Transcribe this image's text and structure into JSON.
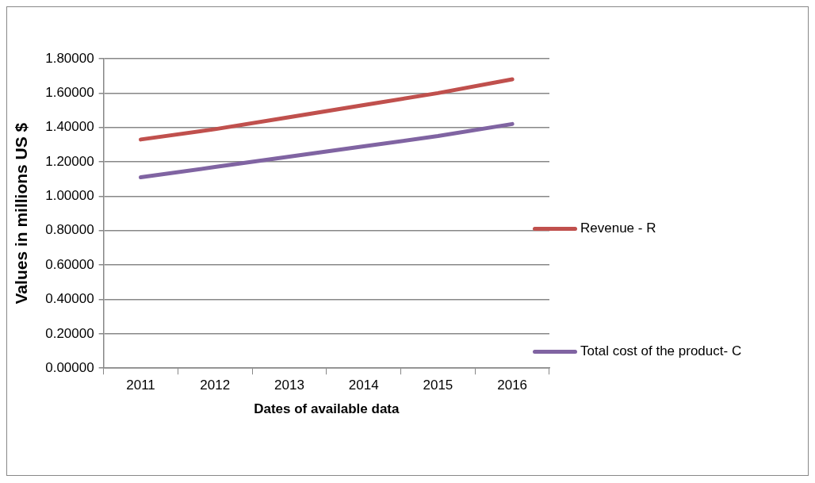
{
  "chart_data": {
    "type": "line",
    "xlabel": "Dates of available data",
    "ylabel": "Values in millions US $",
    "categories": [
      "2011",
      "2012",
      "2013",
      "2014",
      "2015",
      "2016"
    ],
    "series": [
      {
        "name": "Revenue  - R",
        "color": "#c0504d",
        "values": [
          1.33,
          1.39,
          1.46,
          1.53,
          1.6,
          1.68
        ]
      },
      {
        "name": "Total cost of the product- C",
        "color": "#8064a2",
        "values": [
          1.11,
          1.17,
          1.23,
          1.29,
          1.35,
          1.42
        ]
      }
    ],
    "ylim": [
      0,
      1.8
    ],
    "yticks": [
      {
        "value": 0,
        "label": "0.00000"
      },
      {
        "value": 0.2,
        "label": "0.20000"
      },
      {
        "value": 0.4,
        "label": "0.40000"
      },
      {
        "value": 0.6,
        "label": "0.60000"
      },
      {
        "value": 0.8,
        "label": "0.80000"
      },
      {
        "value": 1,
        "label": "1.00000"
      },
      {
        "value": 1.2,
        "label": "1.20000"
      },
      {
        "value": 1.4,
        "label": "1.40000"
      },
      {
        "value": 1.6,
        "label": "1.60000"
      },
      {
        "value": 1.8,
        "label": "1.80000"
      }
    ],
    "grid": "y",
    "legend": "right",
    "marker": "none",
    "line_style": "solid"
  }
}
